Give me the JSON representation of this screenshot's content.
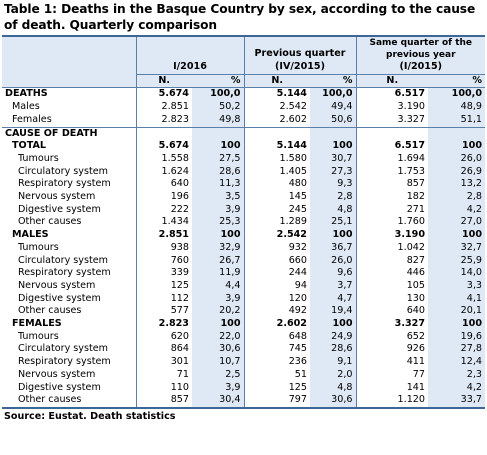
{
  "title": "Table 1: Deaths in the Basque Country by sex, according to the cause of death. Quarterly comparison",
  "headers": {
    "col1_group": "I/2016",
    "col2_group_line1": "Previous quarter",
    "col2_group_line2": "(IV/2015)",
    "col3_group_line1": "Same quarter of the",
    "col3_group_line2": "previous year",
    "col3_group_line3": "(I/2015)",
    "n": "N.",
    "pct": "%"
  },
  "rows": [
    {
      "label": "DEATHS",
      "style": "section",
      "v": [
        "5.674",
        "100,0",
        "5.144",
        "100,0",
        "6.517",
        "100,0"
      ]
    },
    {
      "label": "Males",
      "style": "item",
      "v": [
        "2.851",
        "50,2",
        "2.542",
        "49,4",
        "3.190",
        "48,9"
      ]
    },
    {
      "label": "Females",
      "style": "item",
      "v": [
        "2.823",
        "49,8",
        "2.602",
        "50,6",
        "3.327",
        "51,1"
      ]
    },
    {
      "label": "CAUSE OF DEATH",
      "style": "heading",
      "v": [
        "",
        "",
        "",
        "",
        "",
        ""
      ]
    },
    {
      "label": "TOTAL",
      "style": "group",
      "v": [
        "5.674",
        "100",
        "5.144",
        "100",
        "6.517",
        "100"
      ]
    },
    {
      "label": "Tumours",
      "style": "item2",
      "v": [
        "1.558",
        "27,5",
        "1.580",
        "30,7",
        "1.694",
        "26,0"
      ]
    },
    {
      "label": "Circulatory system",
      "style": "item2",
      "v": [
        "1.624",
        "28,6",
        "1.405",
        "27,3",
        "1.753",
        "26,9"
      ]
    },
    {
      "label": "Respiratory system",
      "style": "item2",
      "v": [
        "640",
        "11,3",
        "480",
        "9,3",
        "857",
        "13,2"
      ]
    },
    {
      "label": "Nervous system",
      "style": "item2",
      "v": [
        "196",
        "3,5",
        "145",
        "2,8",
        "182",
        "2,8"
      ]
    },
    {
      "label": "Digestive system",
      "style": "item2",
      "v": [
        "222",
        "3,9",
        "245",
        "4,8",
        "271",
        "4,2"
      ]
    },
    {
      "label": "Other causes",
      "style": "item2",
      "v": [
        "1.434",
        "25,3",
        "1.289",
        "25,1",
        "1.760",
        "27,0"
      ]
    },
    {
      "label": "MALES",
      "style": "group",
      "v": [
        "2.851",
        "100",
        "2.542",
        "100",
        "3.190",
        "100"
      ]
    },
    {
      "label": "Tumours",
      "style": "item2",
      "v": [
        "938",
        "32,9",
        "932",
        "36,7",
        "1.042",
        "32,7"
      ]
    },
    {
      "label": "Circulatory system",
      "style": "item2",
      "v": [
        "760",
        "26,7",
        "660",
        "26,0",
        "827",
        "25,9"
      ]
    },
    {
      "label": "Respiratory system",
      "style": "item2",
      "v": [
        "339",
        "11,9",
        "244",
        "9,6",
        "446",
        "14,0"
      ]
    },
    {
      "label": "Nervous system",
      "style": "item2",
      "v": [
        "125",
        "4,4",
        "94",
        "3,7",
        "105",
        "3,3"
      ]
    },
    {
      "label": "Digestive system",
      "style": "item2",
      "v": [
        "112",
        "3,9",
        "120",
        "4,7",
        "130",
        "4,1"
      ]
    },
    {
      "label": "Other causes",
      "style": "item2",
      "v": [
        "577",
        "20,2",
        "492",
        "19,4",
        "640",
        "20,1"
      ]
    },
    {
      "label": "FEMALES",
      "style": "group",
      "v": [
        "2.823",
        "100",
        "2.602",
        "100",
        "3.327",
        "100"
      ]
    },
    {
      "label": "Tumours",
      "style": "item2",
      "v": [
        "620",
        "22,0",
        "648",
        "24,9",
        "652",
        "19,6"
      ]
    },
    {
      "label": "Circulatory system",
      "style": "item2",
      "v": [
        "864",
        "30,6",
        "745",
        "28,6",
        "926",
        "27,8"
      ]
    },
    {
      "label": "Respiratory system",
      "style": "item2",
      "v": [
        "301",
        "10,7",
        "236",
        "9,1",
        "411",
        "12,4"
      ]
    },
    {
      "label": "Nervous system",
      "style": "item2",
      "v": [
        "71",
        "2,5",
        "51",
        "2,0",
        "77",
        "2,3"
      ]
    },
    {
      "label": "Digestive system",
      "style": "item2",
      "v": [
        "110",
        "3,9",
        "125",
        "4,8",
        "141",
        "4,2"
      ]
    },
    {
      "label": "Other causes",
      "style": "item2",
      "v": [
        "857",
        "30,4",
        "797",
        "30,6",
        "1.120",
        "33,7"
      ]
    }
  ],
  "source": "Source: Eustat. Death statistics",
  "colors": {
    "header_fill": "#dfe9f5",
    "rule": "#3d6699"
  }
}
